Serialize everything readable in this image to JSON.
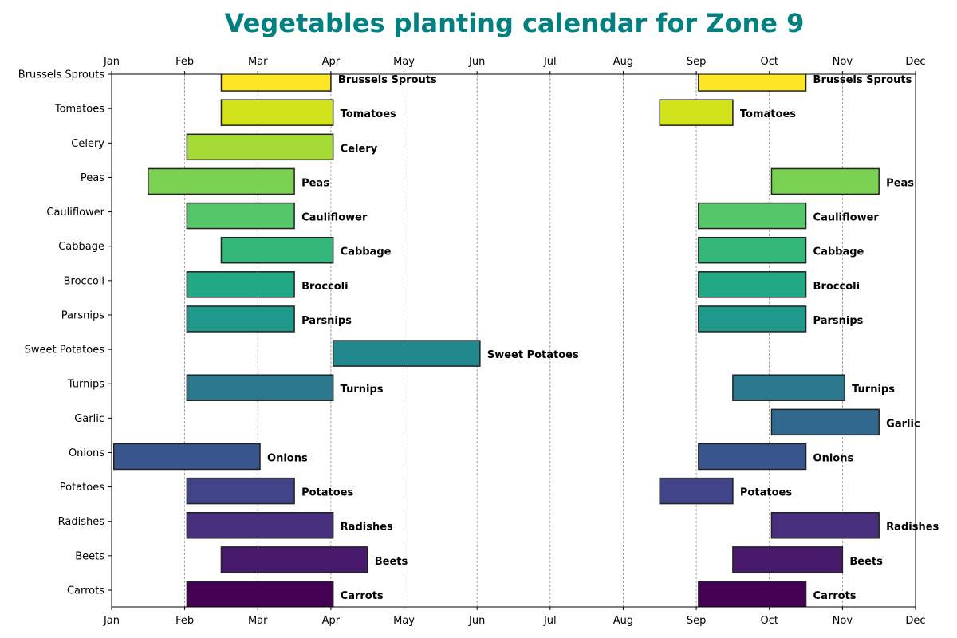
{
  "chart_data": {
    "type": "bar",
    "orientation": "horizontal-gantt",
    "title": "Vegetables planting calendar for Zone 9",
    "title_color": "#008080",
    "x_unit": "month (0 = Jan)",
    "xlim": [
      0,
      11
    ],
    "x_ticks": [
      "Jan",
      "Feb",
      "Mar",
      "Apr",
      "May",
      "Jun",
      "Jul",
      "Aug",
      "Sep",
      "Oct",
      "Nov",
      "Dec"
    ],
    "grid": "vertical dashed",
    "bar_labels": true,
    "colormap": "viridis",
    "rows": [
      {
        "name": "Carrots",
        "color": "#440154",
        "periods": [
          [
            1.03,
            3.03
          ],
          [
            8.03,
            9.5
          ]
        ]
      },
      {
        "name": "Beets",
        "color": "#481a6c",
        "periods": [
          [
            1.5,
            3.5
          ],
          [
            8.5,
            10
          ]
        ]
      },
      {
        "name": "Radishes",
        "color": "#472f7d",
        "periods": [
          [
            1.03,
            3.03
          ],
          [
            9.03,
            10.5
          ]
        ]
      },
      {
        "name": "Potatoes",
        "color": "#414487",
        "periods": [
          [
            1.03,
            2.5
          ],
          [
            7.5,
            8.5
          ]
        ]
      },
      {
        "name": "Onions",
        "color": "#39568c",
        "periods": [
          [
            0.03,
            2.03
          ],
          [
            8.03,
            9.5
          ]
        ]
      },
      {
        "name": "Garlic",
        "color": "#31688e",
        "periods": [
          [
            9.03,
            10.5
          ]
        ]
      },
      {
        "name": "Turnips",
        "color": "#2a788e",
        "periods": [
          [
            1.03,
            3.03
          ],
          [
            8.5,
            10.03
          ]
        ]
      },
      {
        "name": "Sweet Potatoes",
        "color": "#23888e",
        "periods": [
          [
            3.03,
            5.04
          ]
        ]
      },
      {
        "name": "Parsnips",
        "color": "#1f988b",
        "periods": [
          [
            1.03,
            2.5
          ],
          [
            8.03,
            9.5
          ]
        ]
      },
      {
        "name": "Broccoli",
        "color": "#22a884",
        "periods": [
          [
            1.03,
            2.5
          ],
          [
            8.03,
            9.5
          ]
        ]
      },
      {
        "name": "Cabbage",
        "color": "#35b779",
        "periods": [
          [
            1.5,
            3.03
          ],
          [
            8.03,
            9.5
          ]
        ]
      },
      {
        "name": "Cauliflower",
        "color": "#54c568",
        "periods": [
          [
            1.03,
            2.5
          ],
          [
            8.03,
            9.5
          ]
        ]
      },
      {
        "name": "Peas",
        "color": "#7ad151",
        "periods": [
          [
            0.5,
            2.5
          ],
          [
            9.03,
            10.5
          ]
        ]
      },
      {
        "name": "Celery",
        "color": "#a5db36",
        "periods": [
          [
            1.03,
            3.03
          ]
        ]
      },
      {
        "name": "Tomatoes",
        "color": "#d2e21b",
        "periods": [
          [
            1.5,
            3.03
          ],
          [
            7.5,
            8.5
          ]
        ]
      },
      {
        "name": "Brussels Sprouts",
        "color": "#fde725",
        "periods": [
          [
            1.5,
            3.0
          ],
          [
            8.03,
            9.5
          ]
        ]
      }
    ]
  }
}
